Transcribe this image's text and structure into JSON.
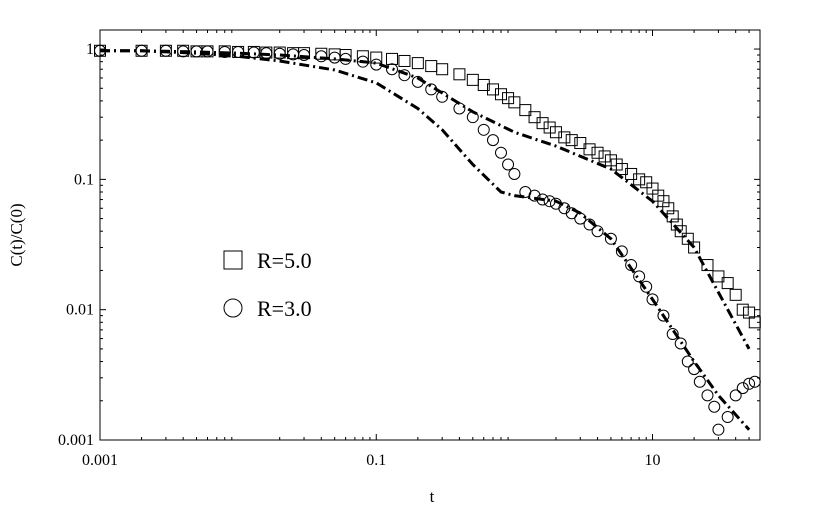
{
  "chart_data": {
    "type": "scatter",
    "x_scale": "log",
    "y_scale": "log",
    "xlabel": "t",
    "ylabel": "C(t)/C(0)",
    "xlim": [
      0.001,
      60
    ],
    "ylim": [
      0.001,
      1.4
    ],
    "x_ticks": [
      {
        "value": 0.001,
        "label": "0.001"
      },
      {
        "value": 0.1,
        "label": "0.1"
      },
      {
        "value": 10,
        "label": "10"
      }
    ],
    "y_ticks": [
      {
        "value": 1,
        "label": "1"
      },
      {
        "value": 0.1,
        "label": "0.1"
      },
      {
        "value": 0.01,
        "label": "0.01"
      },
      {
        "value": 0.001,
        "label": "0.001"
      }
    ],
    "legend": {
      "placement": "center-left"
    },
    "series": [
      {
        "name": "R=5.0",
        "marker": "square",
        "x": [
          0.001,
          0.002,
          0.003,
          0.004,
          0.005,
          0.006,
          0.008,
          0.01,
          0.013,
          0.016,
          0.02,
          0.025,
          0.03,
          0.04,
          0.05,
          0.06,
          0.08,
          0.1,
          0.13,
          0.16,
          0.2,
          0.25,
          0.3,
          0.4,
          0.5,
          0.6,
          0.7,
          0.8,
          0.9,
          1.0,
          1.2,
          1.4,
          1.6,
          1.8,
          2.0,
          2.3,
          2.6,
          3.0,
          3.5,
          4.0,
          4.5,
          5.0,
          5.5,
          6.0,
          7.0,
          8.0,
          9.0,
          10,
          11,
          12,
          13,
          14,
          15,
          16,
          18,
          20,
          25,
          30,
          35,
          40,
          45,
          50,
          55
        ],
        "values": [
          0.97,
          0.97,
          0.97,
          0.97,
          0.96,
          0.96,
          0.96,
          0.95,
          0.95,
          0.94,
          0.94,
          0.93,
          0.93,
          0.92,
          0.91,
          0.9,
          0.88,
          0.86,
          0.84,
          0.81,
          0.78,
          0.74,
          0.7,
          0.64,
          0.58,
          0.53,
          0.49,
          0.45,
          0.42,
          0.39,
          0.34,
          0.3,
          0.27,
          0.25,
          0.23,
          0.21,
          0.2,
          0.19,
          0.17,
          0.16,
          0.15,
          0.14,
          0.13,
          0.12,
          0.11,
          0.1,
          0.095,
          0.085,
          0.075,
          0.068,
          0.06,
          0.052,
          0.045,
          0.04,
          0.035,
          0.03,
          0.022,
          0.018,
          0.016,
          0.013,
          0.01,
          0.0095,
          0.008
        ]
      },
      {
        "name": "R=3.0",
        "marker": "circle",
        "x": [
          0.001,
          0.002,
          0.003,
          0.004,
          0.005,
          0.006,
          0.008,
          0.01,
          0.013,
          0.016,
          0.02,
          0.025,
          0.03,
          0.04,
          0.05,
          0.06,
          0.08,
          0.1,
          0.13,
          0.16,
          0.2,
          0.25,
          0.3,
          0.4,
          0.5,
          0.6,
          0.7,
          0.8,
          0.9,
          1.0,
          1.2,
          1.4,
          1.6,
          1.8,
          2.0,
          2.3,
          2.6,
          3.0,
          3.5,
          4.0,
          5.0,
          6.0,
          7.0,
          8.0,
          9.0,
          10,
          12,
          14,
          16,
          18,
          20,
          22,
          25,
          28,
          30,
          35,
          40,
          45,
          50,
          55
        ],
        "values": [
          0.97,
          0.97,
          0.97,
          0.96,
          0.96,
          0.96,
          0.95,
          0.95,
          0.94,
          0.93,
          0.92,
          0.91,
          0.9,
          0.88,
          0.86,
          0.84,
          0.8,
          0.76,
          0.7,
          0.63,
          0.56,
          0.49,
          0.43,
          0.35,
          0.3,
          0.24,
          0.2,
          0.16,
          0.13,
          0.11,
          0.08,
          0.075,
          0.07,
          0.068,
          0.065,
          0.06,
          0.055,
          0.05,
          0.045,
          0.04,
          0.035,
          0.028,
          0.022,
          0.018,
          0.015,
          0.012,
          0.009,
          0.0065,
          0.0055,
          0.004,
          0.0035,
          0.0028,
          0.0022,
          0.0018,
          0.0012,
          0.0015,
          0.0022,
          0.0025,
          0.0027,
          0.0028
        ]
      },
      {
        "marker": "dash-dot-line",
        "x": [
          0.001,
          0.002,
          0.005,
          0.01,
          0.02,
          0.05,
          0.1,
          0.2,
          0.5,
          1,
          2,
          5,
          10,
          20,
          50
        ],
        "values": [
          0.97,
          0.97,
          0.95,
          0.93,
          0.9,
          0.84,
          0.78,
          0.6,
          0.33,
          0.23,
          0.18,
          0.12,
          0.068,
          0.03,
          0.005
        ]
      },
      {
        "marker": "dash-dot-line",
        "x": [
          0.001,
          0.002,
          0.005,
          0.01,
          0.02,
          0.05,
          0.1,
          0.2,
          0.3,
          0.5,
          0.8,
          1,
          2,
          3,
          5,
          10,
          20,
          30,
          50
        ],
        "values": [
          0.97,
          0.97,
          0.93,
          0.88,
          0.81,
          0.69,
          0.55,
          0.35,
          0.24,
          0.13,
          0.08,
          0.075,
          0.068,
          0.055,
          0.035,
          0.012,
          0.004,
          0.0022,
          0.0012
        ]
      }
    ]
  }
}
